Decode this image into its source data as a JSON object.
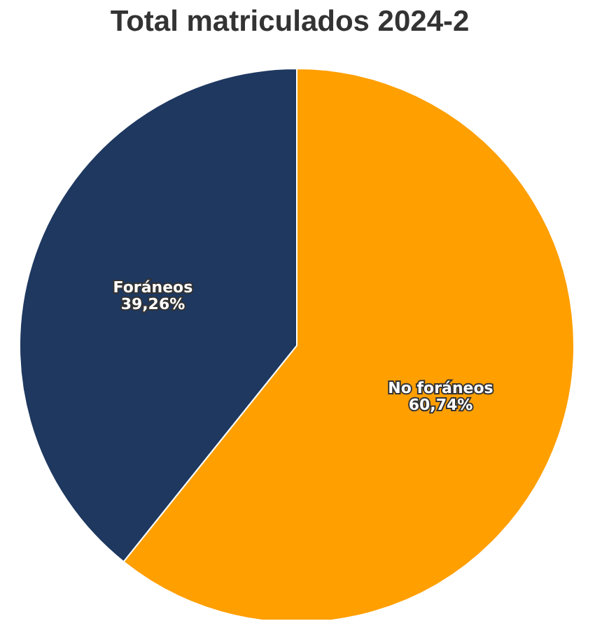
{
  "chart_data": {
    "type": "pie",
    "title": "Total matriculados 2024-2",
    "categories": [
      "No foráneos",
      "Foráneos"
    ],
    "values": [
      60.74,
      39.26
    ],
    "colors": [
      "#ff9f00",
      "#1e3860"
    ],
    "value_labels": [
      "60,74%",
      "39,26%"
    ]
  }
}
